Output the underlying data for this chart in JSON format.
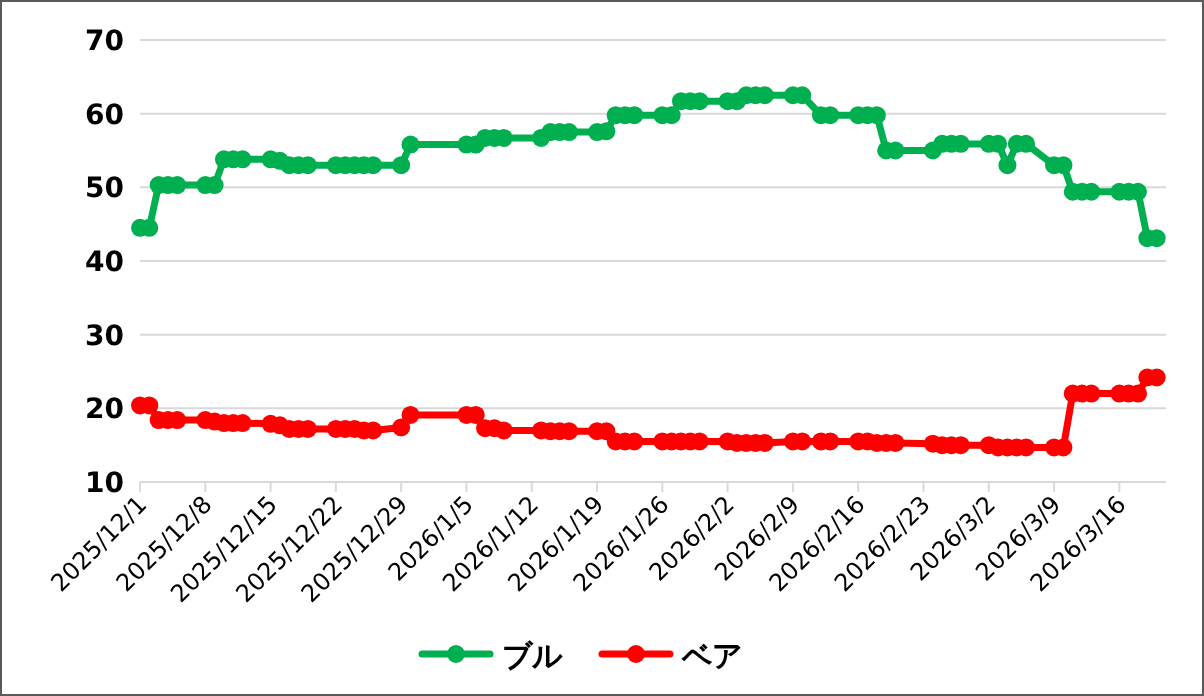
{
  "chart_data": {
    "type": "line",
    "x": [
      "2025-12-01",
      "2025-12-02",
      "2025-12-03",
      "2025-12-04",
      "2025-12-05",
      "2025-12-08",
      "2025-12-09",
      "2025-12-10",
      "2025-12-11",
      "2025-12-12",
      "2025-12-15",
      "2025-12-16",
      "2025-12-17",
      "2025-12-18",
      "2025-12-19",
      "2025-12-22",
      "2025-12-23",
      "2025-12-24",
      "2025-12-25",
      "2025-12-26",
      "2025-12-29",
      "2025-12-30",
      "2026-01-05",
      "2026-01-06",
      "2026-01-07",
      "2026-01-08",
      "2026-01-09",
      "2026-01-13",
      "2026-01-14",
      "2026-01-15",
      "2026-01-16",
      "2026-01-19",
      "2026-01-20",
      "2026-01-21",
      "2026-01-22",
      "2026-01-23",
      "2026-01-26",
      "2026-01-27",
      "2026-01-28",
      "2026-01-29",
      "2026-01-30",
      "2026-02-02",
      "2026-02-03",
      "2026-02-04",
      "2026-02-05",
      "2026-02-06",
      "2026-02-09",
      "2026-02-10",
      "2026-02-12",
      "2026-02-13",
      "2026-02-16",
      "2026-02-17",
      "2026-02-18",
      "2026-02-19",
      "2026-02-20",
      "2026-02-24",
      "2026-02-25",
      "2026-02-26",
      "2026-02-27",
      "2026-03-02",
      "2026-03-03",
      "2026-03-04",
      "2026-03-05",
      "2026-03-06",
      "2026-03-09",
      "2026-03-10",
      "2026-03-11",
      "2026-03-12",
      "2026-03-13",
      "2026-03-16",
      "2026-03-17",
      "2026-03-18",
      "2026-03-19",
      "2026-03-20"
    ],
    "series": [
      {
        "name": "ブル",
        "color": "#00b050",
        "values": [
          44.5,
          44.5,
          50.3,
          50.3,
          50.3,
          50.3,
          50.3,
          53.8,
          53.8,
          53.8,
          53.8,
          53.6,
          53.0,
          53.0,
          53.0,
          53.0,
          53.0,
          53.0,
          53.0,
          53.0,
          53.0,
          55.8,
          55.8,
          55.8,
          56.7,
          56.7,
          56.7,
          56.7,
          57.5,
          57.5,
          57.5,
          57.5,
          57.6,
          59.8,
          59.8,
          59.8,
          59.8,
          59.8,
          61.7,
          61.7,
          61.7,
          61.7,
          61.7,
          62.5,
          62.5,
          62.5,
          62.5,
          62.5,
          59.8,
          59.8,
          59.8,
          59.8,
          59.8,
          55.0,
          55.0,
          55.0,
          55.9,
          55.9,
          55.9,
          55.9,
          55.9,
          53.0,
          55.9,
          55.9,
          53.0,
          53.0,
          49.4,
          49.4,
          49.4,
          49.4,
          49.4,
          49.4,
          43.1,
          43.1
        ]
      },
      {
        "name": "ベア",
        "color": "#ff0000",
        "values": [
          20.4,
          20.4,
          18.4,
          18.4,
          18.4,
          18.4,
          18.2,
          18.0,
          18.0,
          18.0,
          17.9,
          17.7,
          17.2,
          17.2,
          17.2,
          17.2,
          17.2,
          17.2,
          17.0,
          17.0,
          17.4,
          19.1,
          19.1,
          19.1,
          17.3,
          17.3,
          17.0,
          17.0,
          16.9,
          16.9,
          16.9,
          16.9,
          16.9,
          15.5,
          15.5,
          15.5,
          15.5,
          15.5,
          15.5,
          15.5,
          15.5,
          15.5,
          15.3,
          15.3,
          15.3,
          15.3,
          15.5,
          15.5,
          15.5,
          15.5,
          15.5,
          15.5,
          15.3,
          15.3,
          15.3,
          15.2,
          15.0,
          15.0,
          15.0,
          15.0,
          14.7,
          14.7,
          14.7,
          14.7,
          14.7,
          14.7,
          22.0,
          22.0,
          22.0,
          22.0,
          22.0,
          22.0,
          24.2,
          24.2
        ]
      }
    ],
    "xlim": [
      "2025-12-01",
      "2026-03-21"
    ],
    "xticks": [
      {
        "value": "2025-12-01",
        "label": "2025/12/1"
      },
      {
        "value": "2025-12-08",
        "label": "2025/12/8"
      },
      {
        "value": "2025-12-15",
        "label": "2025/12/15"
      },
      {
        "value": "2025-12-22",
        "label": "2025/12/22"
      },
      {
        "value": "2025-12-29",
        "label": "2025/12/29"
      },
      {
        "value": "2026-01-05",
        "label": "2026/1/5"
      },
      {
        "value": "2026-01-12",
        "label": "2026/1/12"
      },
      {
        "value": "2026-01-19",
        "label": "2026/1/19"
      },
      {
        "value": "2026-01-26",
        "label": "2026/1/26"
      },
      {
        "value": "2026-02-02",
        "label": "2026/2/2"
      },
      {
        "value": "2026-02-09",
        "label": "2026/2/9"
      },
      {
        "value": "2026-02-16",
        "label": "2026/2/16"
      },
      {
        "value": "2026-02-23",
        "label": "2026/2/23"
      },
      {
        "value": "2026-03-02",
        "label": "2026/3/2"
      },
      {
        "value": "2026-03-09",
        "label": "2026/3/9"
      },
      {
        "value": "2026-03-16",
        "label": "2026/3/16"
      }
    ],
    "ylim": [
      10,
      70
    ],
    "yticks": [
      10,
      20,
      30,
      40,
      50,
      60,
      70
    ],
    "grid": "y",
    "legend": "bottom",
    "marker": "circle",
    "line_style": "solid"
  }
}
